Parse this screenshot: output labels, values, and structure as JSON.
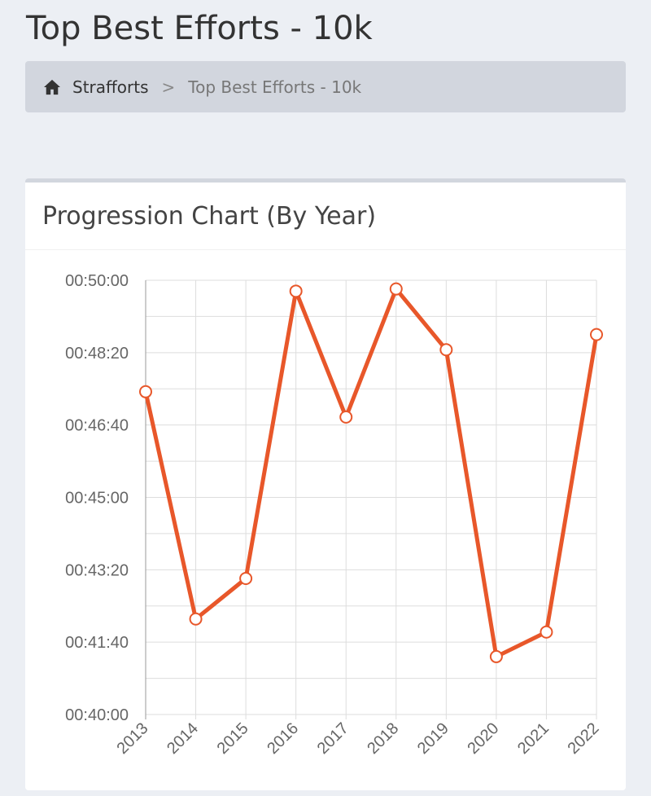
{
  "page": {
    "title": "Top Best Efforts - 10k"
  },
  "breadcrumb": {
    "home_icon": "home-icon",
    "items": [
      "Strafforts",
      "Top Best Efforts - 10k"
    ],
    "separator": ">"
  },
  "panel": {
    "title": "Progression Chart (By Year)"
  },
  "chart_data": {
    "type": "line",
    "title": "",
    "xlabel": "",
    "ylabel": "",
    "categories": [
      "2013",
      "2014",
      "2015",
      "2016",
      "2017",
      "2018",
      "2019",
      "2020",
      "2021",
      "2022"
    ],
    "values": [
      "00:47:26",
      "00:42:12",
      "00:43:08",
      "00:49:45",
      "00:46:51",
      "00:49:48",
      "00:48:24",
      "00:41:20",
      "00:41:54",
      "00:48:45"
    ],
    "ylim": [
      "00:40:00",
      "00:50:00"
    ],
    "yticks": [
      "00:40:00",
      "00:41:40",
      "00:43:20",
      "00:45:00",
      "00:46:40",
      "00:48:20",
      "00:50:00"
    ],
    "grid": true,
    "line_color": "#e8572a"
  }
}
